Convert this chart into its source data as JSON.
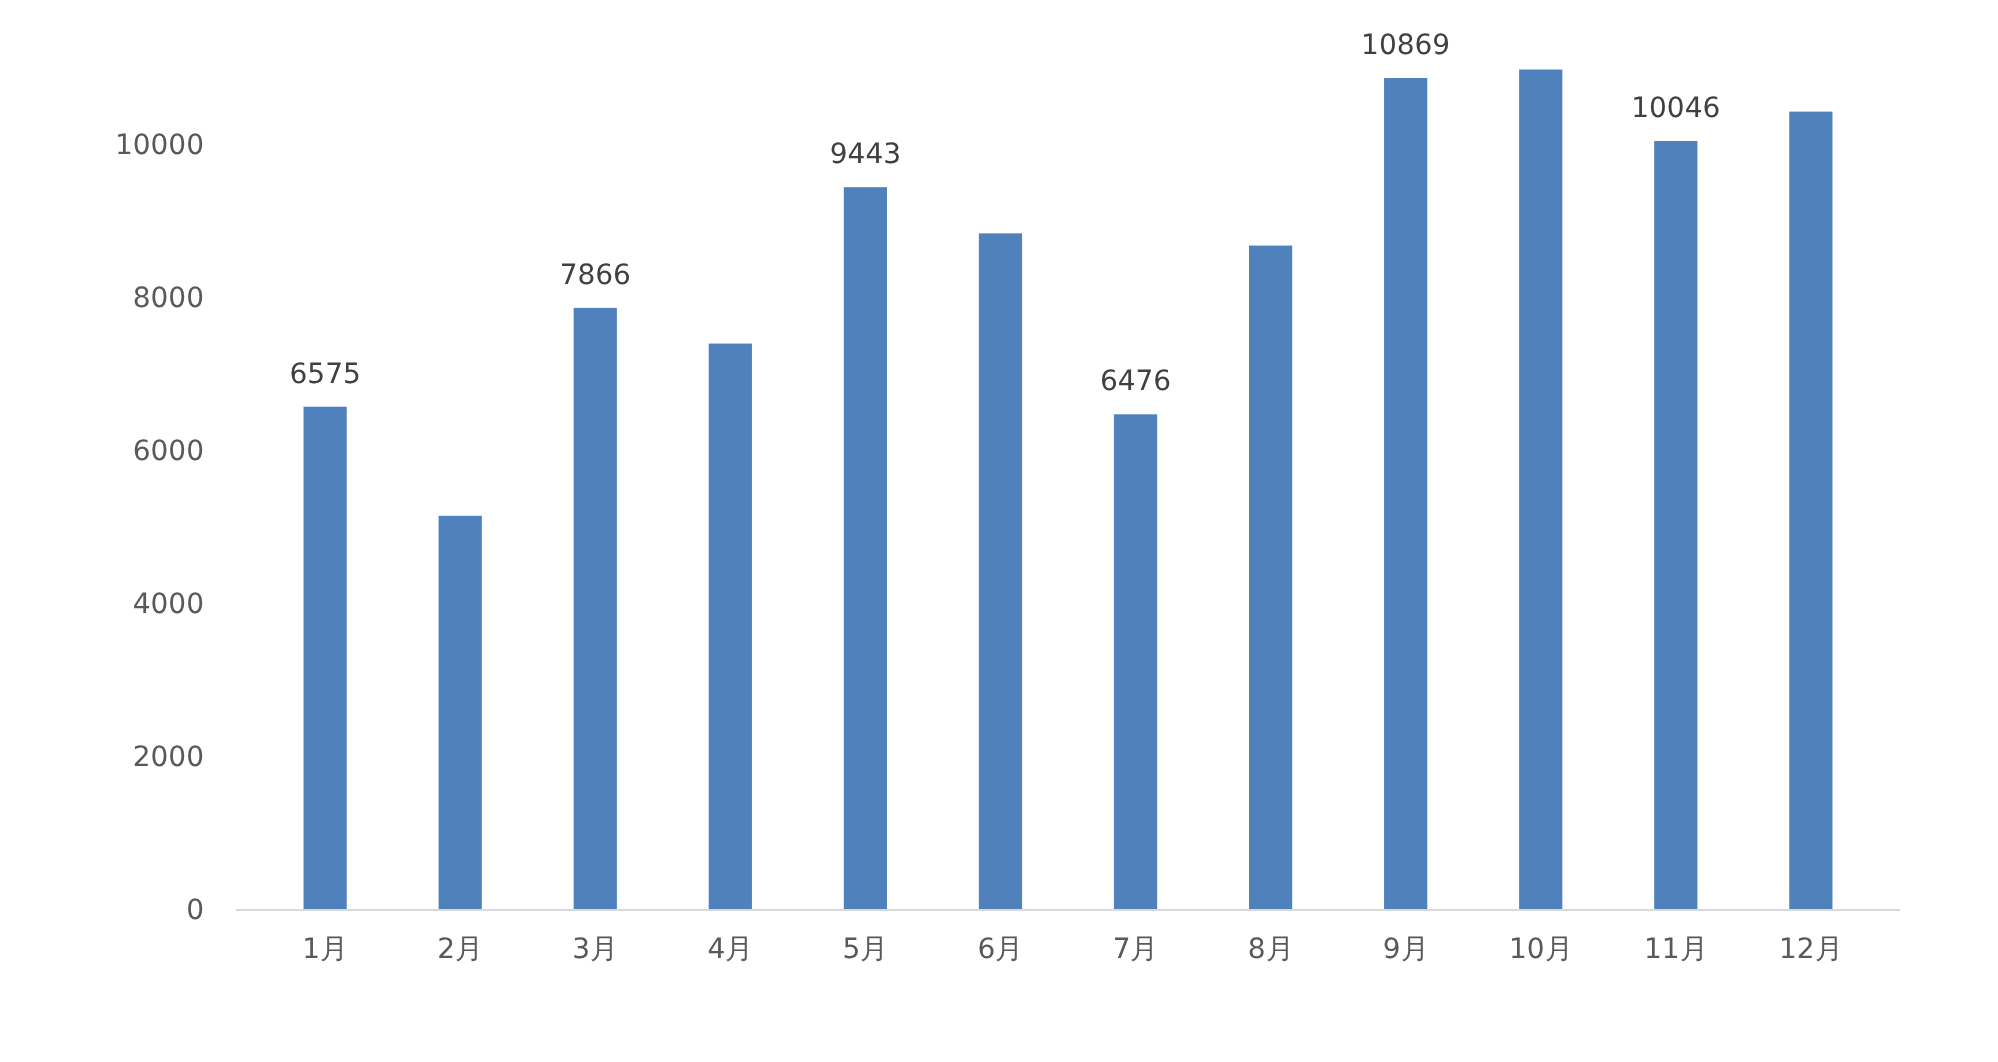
{
  "chart_data": {
    "type": "bar",
    "categories": [
      "1月",
      "2月",
      "3月",
      "4月",
      "5月",
      "6月",
      "7月",
      "8月",
      "9月",
      "10月",
      "11月",
      "12月"
    ],
    "values": [
      6575,
      5150,
      7866,
      7400,
      9443,
      8840,
      6476,
      8680,
      10869,
      10980,
      10046,
      10430
    ],
    "value_labels": [
      "6575",
      null,
      "7866",
      null,
      "9443",
      null,
      "6476",
      null,
      "10869",
      null,
      "10046",
      null
    ],
    "color": "#4f81bd",
    "ylim": [
      0,
      11000
    ],
    "yticks": [
      0,
      2000,
      4000,
      6000,
      8000,
      10000
    ],
    "grid": false
  }
}
